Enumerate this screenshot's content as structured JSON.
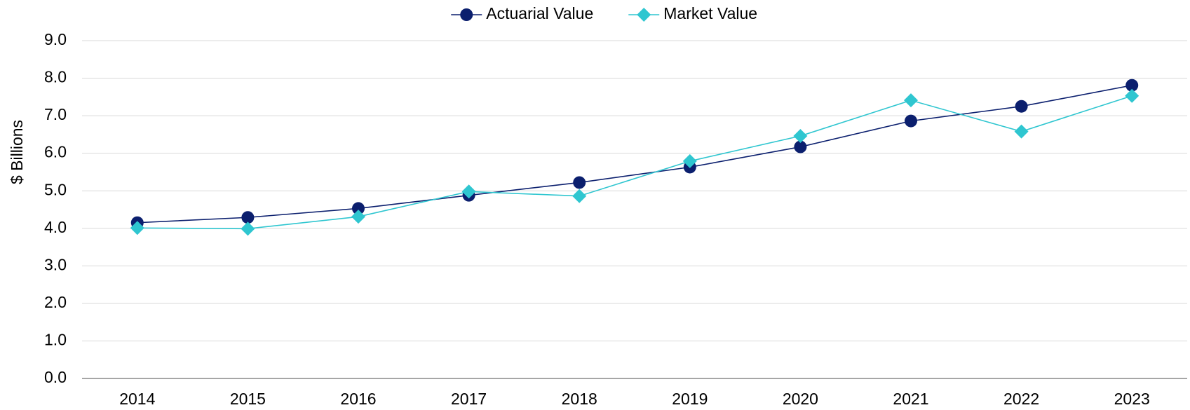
{
  "chart_data": {
    "type": "line",
    "y_label": "$ Billions",
    "categories": [
      "2014",
      "2015",
      "2016",
      "2017",
      "2018",
      "2019",
      "2020",
      "2021",
      "2022",
      "2023"
    ],
    "series": [
      {
        "name": "Actuarial Value",
        "color": "#0b1f6e",
        "marker": "circle",
        "values": [
          4.15,
          4.29,
          4.53,
          4.88,
          5.22,
          5.63,
          6.17,
          6.86,
          7.25,
          7.81
        ]
      },
      {
        "name": "Market Value",
        "color": "#2fc6d0",
        "marker": "diamond",
        "values": [
          4.01,
          3.99,
          4.31,
          4.98,
          4.86,
          5.79,
          6.46,
          7.41,
          6.58,
          7.53
        ]
      }
    ],
    "ylim": [
      0,
      9
    ],
    "yticks": [
      {
        "value": 0,
        "label": "0.0"
      },
      {
        "value": 1,
        "label": "1.0"
      },
      {
        "value": 2,
        "label": "2.0"
      },
      {
        "value": 3,
        "label": "3.0"
      },
      {
        "value": 4,
        "label": "4.0"
      },
      {
        "value": 5,
        "label": "5.0"
      },
      {
        "value": 6,
        "label": "6.0"
      },
      {
        "value": 7,
        "label": "7.0"
      },
      {
        "value": 8,
        "label": "8.0"
      },
      {
        "value": 9,
        "label": "9.0"
      }
    ],
    "grid": true,
    "legend": "top"
  }
}
